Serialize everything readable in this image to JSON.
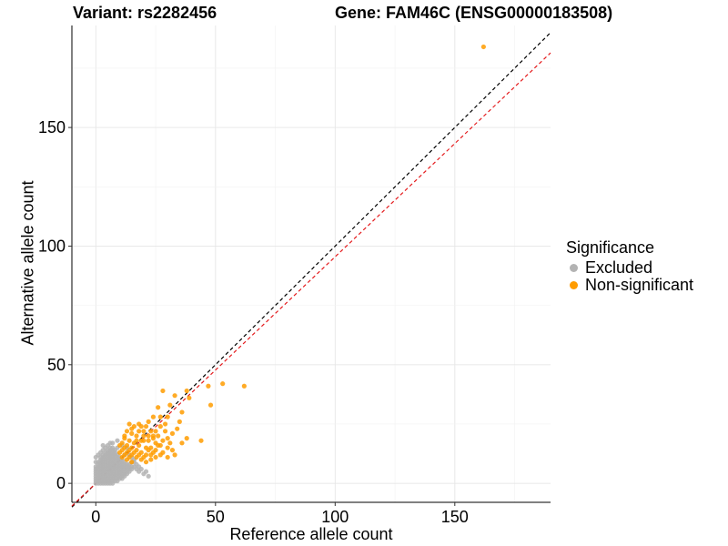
{
  "chart_data": {
    "type": "scatter",
    "title_left": "Variant: rs2282456",
    "title_right": "Gene: FAM46C (ENSG00000183508)",
    "xlabel": "Reference allele count",
    "ylabel": "Alternative allele count",
    "xlim": [
      -10,
      190
    ],
    "ylim": [
      -8,
      193
    ],
    "x_ticks": [
      0,
      50,
      100,
      150
    ],
    "y_ticks": [
      0,
      50,
      100,
      150
    ],
    "x_tick_labels": [
      "0",
      "50",
      "100",
      "150"
    ],
    "y_tick_labels": [
      "0",
      "50",
      "100",
      "150"
    ],
    "grid": true,
    "reference_lines": [
      {
        "name": "identity",
        "slope": 1.0,
        "intercept": 0,
        "color": "#000000",
        "dash": "dashed"
      },
      {
        "name": "fitted",
        "slope": 0.955,
        "intercept": 0,
        "color": "#e41a1c",
        "dash": "dashed"
      }
    ],
    "legend": {
      "title": "Significance",
      "position": "right",
      "entries": [
        {
          "label": "Excluded",
          "color": "#b3b3b3"
        },
        {
          "label": "Non-significant",
          "color": "#ff9c00"
        }
      ]
    },
    "series": [
      {
        "name": "Excluded",
        "color": "#b3b3b3",
        "points": [
          [
            0,
            0
          ],
          [
            0,
            1
          ],
          [
            1,
            0
          ],
          [
            1,
            1
          ],
          [
            0,
            2
          ],
          [
            2,
            0
          ],
          [
            1,
            2
          ],
          [
            2,
            1
          ],
          [
            2,
            2
          ],
          [
            0,
            3
          ],
          [
            3,
            0
          ],
          [
            1,
            3
          ],
          [
            3,
            1
          ],
          [
            2,
            3
          ],
          [
            3,
            2
          ],
          [
            3,
            3
          ],
          [
            0,
            4
          ],
          [
            4,
            0
          ],
          [
            1,
            4
          ],
          [
            4,
            1
          ],
          [
            2,
            4
          ],
          [
            4,
            2
          ],
          [
            3,
            4
          ],
          [
            4,
            3
          ],
          [
            4,
            4
          ],
          [
            0,
            5
          ],
          [
            5,
            0
          ],
          [
            1,
            5
          ],
          [
            5,
            1
          ],
          [
            2,
            5
          ],
          [
            5,
            2
          ],
          [
            3,
            5
          ],
          [
            5,
            3
          ],
          [
            4,
            5
          ],
          [
            5,
            4
          ],
          [
            5,
            5
          ],
          [
            0,
            6
          ],
          [
            6,
            0
          ],
          [
            1,
            6
          ],
          [
            6,
            1
          ],
          [
            2,
            6
          ],
          [
            6,
            2
          ],
          [
            3,
            6
          ],
          [
            6,
            3
          ],
          [
            4,
            6
          ],
          [
            6,
            4
          ],
          [
            5,
            6
          ],
          [
            6,
            5
          ],
          [
            6,
            6
          ],
          [
            0,
            7
          ],
          [
            7,
            0
          ],
          [
            1,
            7
          ],
          [
            7,
            1
          ],
          [
            2,
            7
          ],
          [
            7,
            2
          ],
          [
            3,
            7
          ],
          [
            7,
            3
          ],
          [
            4,
            7
          ],
          [
            7,
            4
          ],
          [
            5,
            7
          ],
          [
            7,
            5
          ],
          [
            6,
            7
          ],
          [
            7,
            6
          ],
          [
            7,
            7
          ],
          [
            1,
            8
          ],
          [
            8,
            1
          ],
          [
            2,
            8
          ],
          [
            8,
            2
          ],
          [
            3,
            8
          ],
          [
            8,
            3
          ],
          [
            4,
            8
          ],
          [
            8,
            4
          ],
          [
            5,
            8
          ],
          [
            8,
            5
          ],
          [
            6,
            8
          ],
          [
            8,
            6
          ],
          [
            7,
            8
          ],
          [
            8,
            7
          ],
          [
            8,
            8
          ],
          [
            1,
            9
          ],
          [
            9,
            1
          ],
          [
            2,
            9
          ],
          [
            9,
            2
          ],
          [
            3,
            9
          ],
          [
            9,
            3
          ],
          [
            4,
            9
          ],
          [
            9,
            4
          ],
          [
            5,
            9
          ],
          [
            9,
            5
          ],
          [
            6,
            9
          ],
          [
            9,
            6
          ],
          [
            7,
            9
          ],
          [
            9,
            7
          ],
          [
            8,
            9
          ],
          [
            9,
            8
          ],
          [
            9,
            9
          ],
          [
            2,
            10
          ],
          [
            10,
            2
          ],
          [
            3,
            10
          ],
          [
            10,
            3
          ],
          [
            4,
            10
          ],
          [
            10,
            4
          ],
          [
            5,
            10
          ],
          [
            10,
            5
          ],
          [
            6,
            10
          ],
          [
            10,
            6
          ],
          [
            7,
            10
          ],
          [
            10,
            7
          ],
          [
            8,
            10
          ],
          [
            10,
            8
          ],
          [
            9,
            10
          ],
          [
            10,
            9
          ],
          [
            10,
            10
          ],
          [
            2,
            11
          ],
          [
            11,
            2
          ],
          [
            3,
            11
          ],
          [
            11,
            3
          ],
          [
            4,
            11
          ],
          [
            11,
            4
          ],
          [
            5,
            11
          ],
          [
            11,
            5
          ],
          [
            6,
            11
          ],
          [
            11,
            6
          ],
          [
            7,
            11
          ],
          [
            11,
            7
          ],
          [
            8,
            11
          ],
          [
            11,
            8
          ],
          [
            9,
            11
          ],
          [
            11,
            9
          ],
          [
            10,
            11
          ],
          [
            11,
            10
          ],
          [
            3,
            12
          ],
          [
            12,
            3
          ],
          [
            4,
            12
          ],
          [
            12,
            4
          ],
          [
            5,
            12
          ],
          [
            12,
            5
          ],
          [
            6,
            12
          ],
          [
            12,
            6
          ],
          [
            7,
            12
          ],
          [
            12,
            7
          ],
          [
            8,
            12
          ],
          [
            12,
            8
          ],
          [
            9,
            12
          ],
          [
            12,
            9
          ],
          [
            4,
            13
          ],
          [
            13,
            4
          ],
          [
            5,
            13
          ],
          [
            13,
            5
          ],
          [
            6,
            13
          ],
          [
            13,
            6
          ],
          [
            7,
            13
          ],
          [
            13,
            7
          ],
          [
            8,
            13
          ],
          [
            13,
            8
          ],
          [
            5,
            14
          ],
          [
            14,
            5
          ],
          [
            6,
            14
          ],
          [
            14,
            6
          ],
          [
            7,
            14
          ],
          [
            14,
            7
          ],
          [
            8,
            14
          ],
          [
            14,
            8
          ],
          [
            6,
            15
          ],
          [
            15,
            6
          ],
          [
            7,
            15
          ],
          [
            15,
            7
          ],
          [
            9,
            15
          ],
          [
            15,
            9
          ],
          [
            16,
            7
          ],
          [
            16,
            9
          ],
          [
            17,
            6
          ],
          [
            17,
            8
          ],
          [
            18,
            5
          ],
          [
            18,
            7
          ],
          [
            19,
            6
          ],
          [
            20,
            4
          ],
          [
            21,
            5
          ],
          [
            22,
            3
          ],
          [
            0,
            9
          ],
          [
            0,
            11
          ],
          [
            1,
            12
          ],
          [
            2,
            13
          ],
          [
            3,
            14
          ],
          [
            4,
            15
          ],
          [
            5,
            16
          ],
          [
            7,
            17
          ],
          [
            9,
            18
          ],
          [
            3,
            16
          ],
          [
            6,
            17
          ],
          [
            11,
            16
          ],
          [
            13,
            15
          ],
          [
            14,
            12
          ],
          [
            15,
            11
          ],
          [
            16,
            10
          ],
          [
            12,
            12
          ]
        ]
      },
      {
        "name": "Non-significant",
        "color": "#ff9c00",
        "points": [
          [
            162,
            184
          ],
          [
            62,
            41
          ],
          [
            53,
            42
          ],
          [
            47,
            41
          ],
          [
            48,
            33
          ],
          [
            38,
            39
          ],
          [
            39,
            36
          ],
          [
            33,
            37
          ],
          [
            28,
            39
          ],
          [
            31,
            33
          ],
          [
            36,
            30
          ],
          [
            26,
            32
          ],
          [
            27,
            28
          ],
          [
            30,
            28
          ],
          [
            35,
            26
          ],
          [
            24,
            28
          ],
          [
            29,
            25
          ],
          [
            22,
            26
          ],
          [
            27,
            24
          ],
          [
            25,
            22
          ],
          [
            21,
            24
          ],
          [
            23,
            22
          ],
          [
            19,
            24
          ],
          [
            29,
            22
          ],
          [
            32,
            21
          ],
          [
            30,
            19
          ],
          [
            28,
            18
          ],
          [
            38,
            19
          ],
          [
            44,
            18
          ],
          [
            36,
            17
          ],
          [
            22,
            20
          ],
          [
            20,
            20
          ],
          [
            24,
            20
          ],
          [
            18,
            22
          ],
          [
            16,
            24
          ],
          [
            14,
            25
          ],
          [
            17,
            20
          ],
          [
            20,
            18
          ],
          [
            15,
            21
          ],
          [
            13,
            22
          ],
          [
            19,
            18
          ],
          [
            22,
            18
          ],
          [
            25,
            17
          ],
          [
            27,
            16
          ],
          [
            30,
            15
          ],
          [
            32,
            14
          ],
          [
            28,
            13
          ],
          [
            25,
            14
          ],
          [
            23,
            15
          ],
          [
            21,
            15
          ],
          [
            18,
            16
          ],
          [
            16,
            17
          ],
          [
            14,
            18
          ],
          [
            12,
            19
          ],
          [
            11,
            17
          ],
          [
            13,
            16
          ],
          [
            15,
            15
          ],
          [
            17,
            14
          ],
          [
            19,
            13
          ],
          [
            21,
            12
          ],
          [
            23,
            12
          ],
          [
            25,
            11
          ],
          [
            20,
            11
          ],
          [
            18,
            12
          ],
          [
            16,
            13
          ],
          [
            14,
            14
          ],
          [
            12,
            15
          ],
          [
            10,
            16
          ],
          [
            11,
            14
          ],
          [
            13,
            13
          ],
          [
            15,
            12
          ],
          [
            17,
            11
          ],
          [
            19,
            10
          ],
          [
            21,
            9
          ],
          [
            23,
            10
          ],
          [
            14,
            11
          ],
          [
            12,
            12
          ],
          [
            10,
            13
          ],
          [
            11,
            11
          ],
          [
            13,
            10
          ],
          [
            15,
            9
          ],
          [
            24,
            19
          ],
          [
            26,
            16
          ],
          [
            22,
            14
          ],
          [
            26,
            20
          ],
          [
            31,
            17
          ],
          [
            34,
            23
          ],
          [
            18,
            25
          ],
          [
            15,
            23
          ],
          [
            12,
            20
          ],
          [
            20,
            22
          ],
          [
            17,
            18
          ],
          [
            24,
            13
          ],
          [
            27,
            12
          ],
          [
            30,
            11
          ],
          [
            33,
            12
          ]
        ]
      }
    ]
  }
}
